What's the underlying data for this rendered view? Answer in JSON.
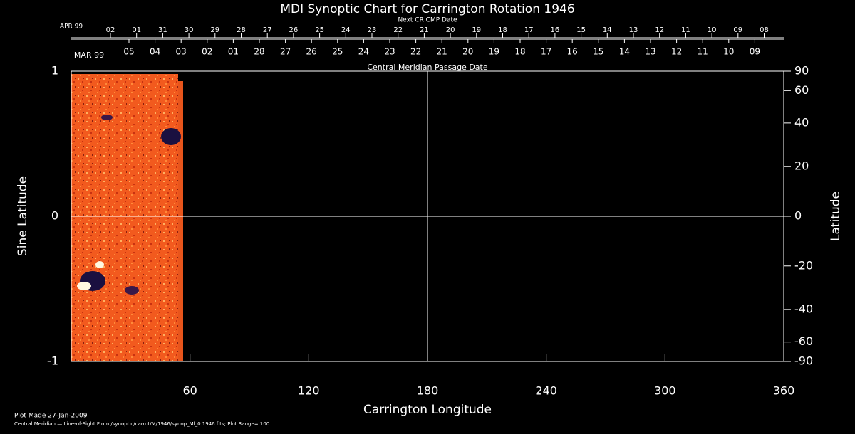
{
  "chart_data": {
    "type": "synoptic",
    "title": "MDI Synoptic Chart for Carrington Rotation 1946",
    "xlabel": "Carrington Longitude",
    "ylabel": "Sine Latitude",
    "y2label": "Latitude",
    "xlim": [
      0,
      360
    ],
    "xticks": [
      60,
      120,
      180,
      240,
      300,
      360
    ],
    "ylim": [
      -1,
      1
    ],
    "yticks": [
      -1,
      0,
      1
    ],
    "y2lim": [
      -90,
      90
    ],
    "y2scale": "sine",
    "y2ticks": [
      90,
      60,
      40,
      20,
      0,
      -20,
      -40,
      -60,
      -90
    ],
    "grid_x": [
      180
    ],
    "grid_y": [
      0
    ],
    "top_date_axis": {
      "label": "Next CR CMP Date",
      "month": "APR 99",
      "color": "#ff3a1a",
      "dates": [
        "02",
        "01",
        "31",
        "30",
        "29",
        "28",
        "27",
        "26",
        "25",
        "24",
        "23",
        "22",
        "21",
        "20",
        "19",
        "18",
        "17",
        "16",
        "15",
        "14",
        "13",
        "12",
        "11",
        "10",
        "09",
        "08"
      ]
    },
    "date_axis": {
      "label": "Central Meridian Passage Date",
      "month": "MAR 99",
      "color": "#ffffff",
      "dates": [
        "05",
        "04",
        "03",
        "02",
        "01",
        "28",
        "27",
        "26",
        "25",
        "24",
        "23",
        "22",
        "21",
        "20",
        "19",
        "18",
        "17",
        "16",
        "15",
        "14",
        "13",
        "12",
        "11",
        "10",
        "09"
      ]
    },
    "footer": [
      "Plot Made 27-Jan-2009",
      "Central Meridian — Line-of-Sight From /synoptic/carrot/M/1946/synop_Ml_0.1946.fits; Plot Range=  100"
    ]
  }
}
